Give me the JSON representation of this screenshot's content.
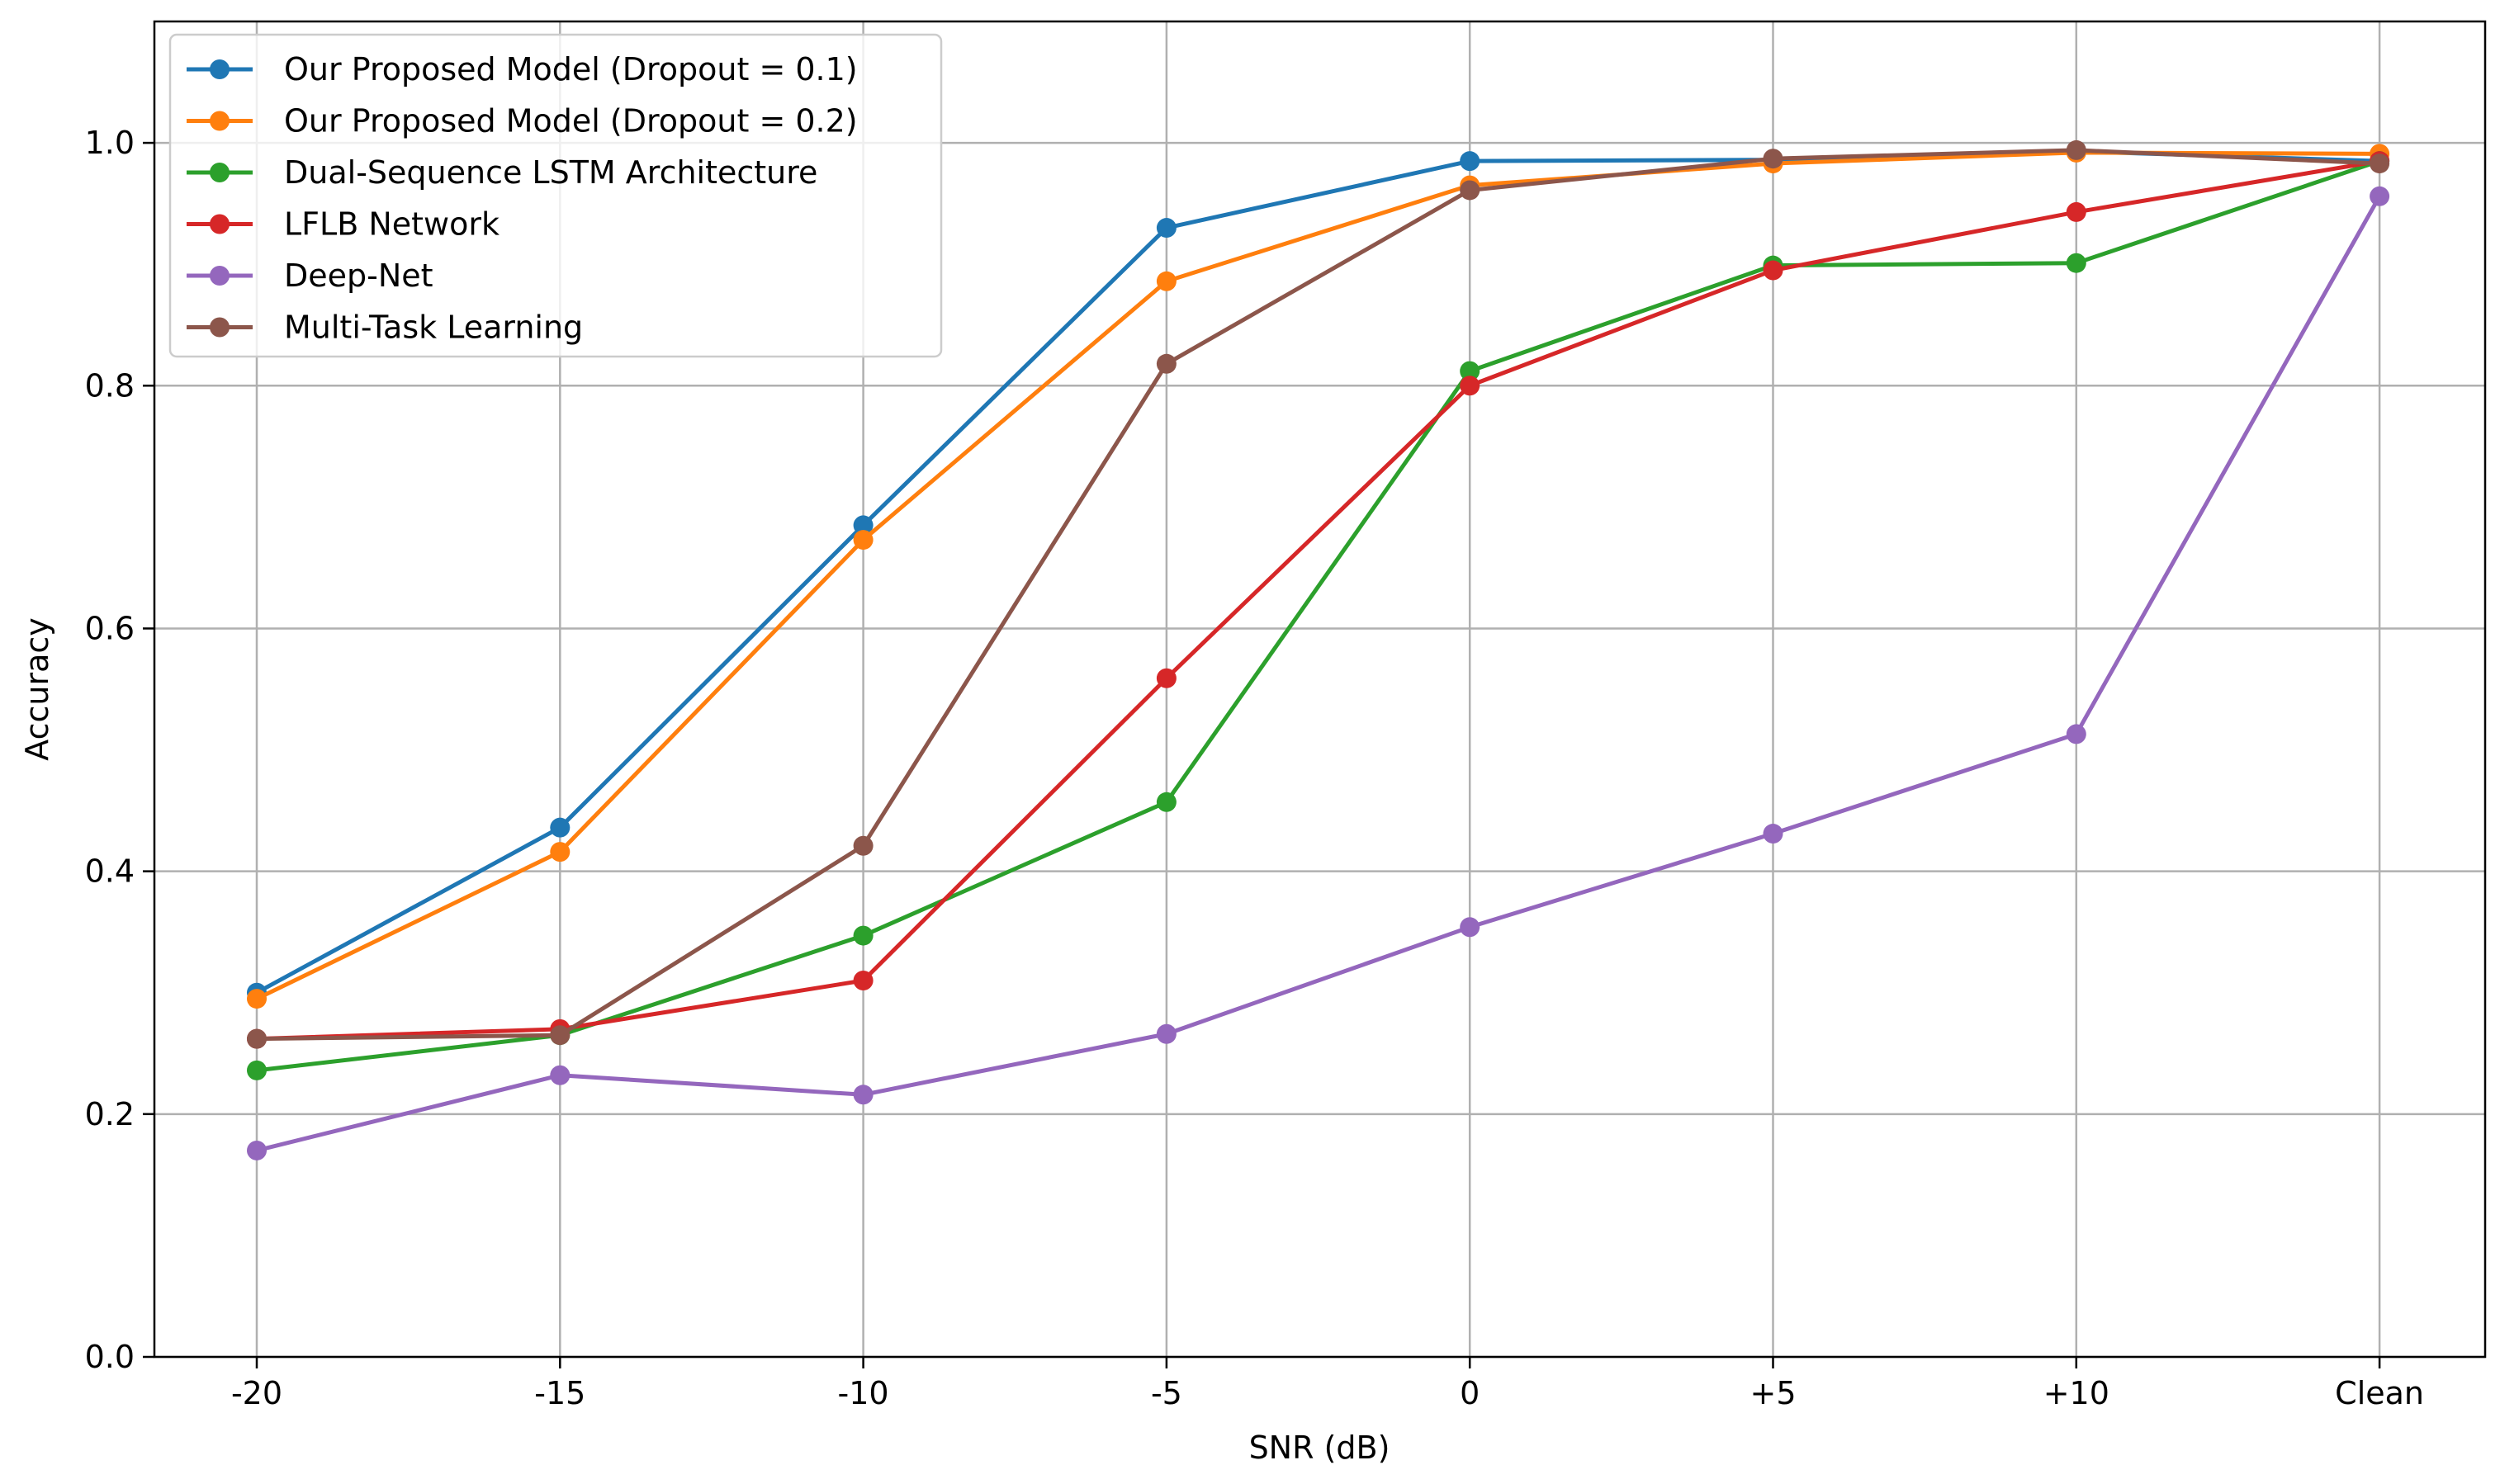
{
  "chart_data": {
    "type": "line",
    "title": "",
    "xlabel": "SNR (dB)",
    "ylabel": "Accuracy",
    "categories": [
      "-20",
      "-15",
      "-10",
      "-5",
      "0",
      "+5",
      "+10",
      "Clean"
    ],
    "ylim": [
      0,
      1.1
    ],
    "yticks": [
      0.0,
      0.2,
      0.4,
      0.6,
      0.8,
      1.0
    ],
    "ytick_labels": [
      "0.0",
      "0.2",
      "0.4",
      "0.6",
      "0.8",
      "1.0"
    ],
    "grid": true,
    "legend_position": "top-left",
    "series": [
      {
        "name": "Our Proposed Model (Dropout = 0.1)",
        "color": "#1f77b4",
        "values": [
          0.3,
          0.436,
          0.685,
          0.93,
          0.985,
          0.986,
          0.993,
          0.985
        ]
      },
      {
        "name": "Our Proposed Model (Dropout = 0.2)",
        "color": "#ff7f0e",
        "values": [
          0.295,
          0.416,
          0.673,
          0.886,
          0.965,
          0.983,
          0.992,
          0.991
        ]
      },
      {
        "name": "Dual-Sequence LSTM Architecture",
        "color": "#2ca02c",
        "values": [
          0.236,
          0.265,
          0.347,
          0.457,
          0.812,
          0.899,
          0.901,
          0.985
        ]
      },
      {
        "name": "LFLB Network",
        "color": "#d62728",
        "values": [
          0.262,
          0.27,
          0.31,
          0.559,
          0.8,
          0.895,
          0.943,
          0.985
        ]
      },
      {
        "name": "Deep-Net",
        "color": "#9467bd",
        "values": [
          0.17,
          0.232,
          0.216,
          0.266,
          0.354,
          0.431,
          0.513,
          0.956
        ]
      },
      {
        "name": "Multi-Task Learning",
        "color": "#8c564b",
        "values": [
          0.262,
          0.265,
          0.421,
          0.818,
          0.961,
          0.987,
          0.994,
          0.983
        ]
      }
    ]
  }
}
